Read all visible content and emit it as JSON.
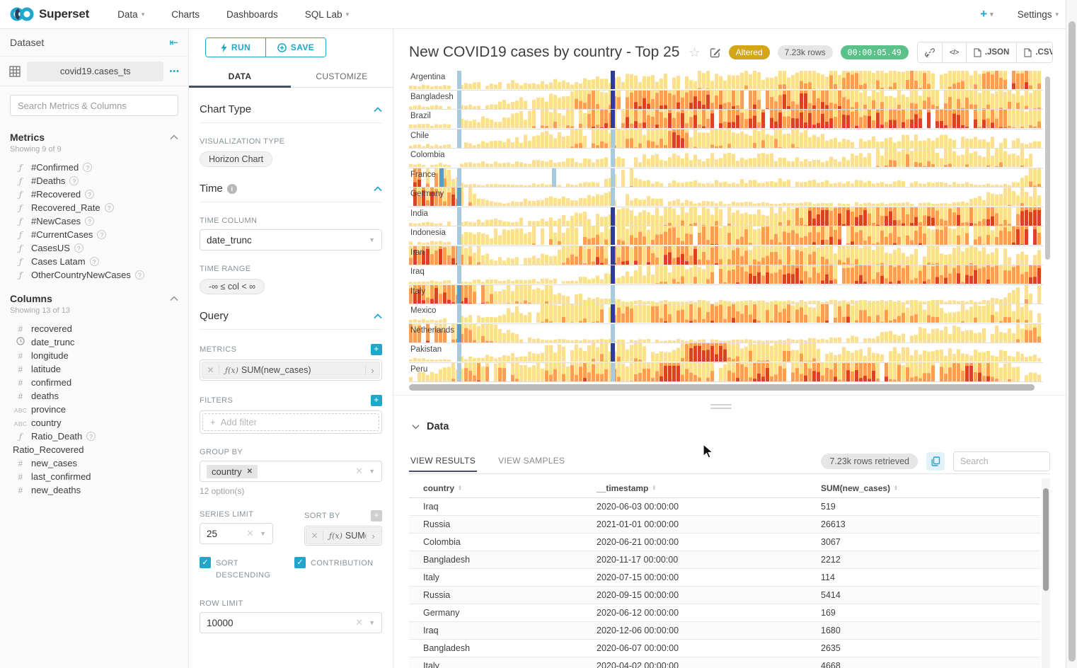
{
  "navbar": {
    "brand": "Superset",
    "items": [
      {
        "label": "Data",
        "caret": true
      },
      {
        "label": "Charts",
        "caret": false
      },
      {
        "label": "Dashboards",
        "caret": false
      },
      {
        "label": "SQL Lab",
        "caret": true
      }
    ],
    "plus_label": "+",
    "settings_label": "Settings"
  },
  "dataset_panel": {
    "title": "Dataset",
    "dataset_name": "covid19.cases_ts",
    "more_label": "•••",
    "search_placeholder": "Search Metrics & Columns",
    "metrics": {
      "title": "Metrics",
      "showing": "Showing 9 of 9",
      "items": [
        "#Confirmed",
        "#Deaths",
        "#Recovered",
        "Recovered_Rate",
        "#NewCases",
        "#CurrentCases",
        "CasesUS",
        "Cases Latam",
        "OtherCountryNewCases"
      ]
    },
    "columns": {
      "title": "Columns",
      "showing": "Showing 13 of 13",
      "items": [
        {
          "label": "recovered",
          "type": "num"
        },
        {
          "label": "date_trunc",
          "type": "time"
        },
        {
          "label": "longitude",
          "type": "num"
        },
        {
          "label": "latitude",
          "type": "num"
        },
        {
          "label": "confirmed",
          "type": "num"
        },
        {
          "label": "deaths",
          "type": "num"
        },
        {
          "label": "province",
          "type": "str"
        },
        {
          "label": "country",
          "type": "str"
        },
        {
          "label": "Ratio_Death",
          "type": "func",
          "help": true
        },
        {
          "label": "Ratio_Recovered",
          "type": "plain"
        },
        {
          "label": "new_cases",
          "type": "num"
        },
        {
          "label": "last_confirmed",
          "type": "num"
        },
        {
          "label": "new_deaths",
          "type": "num"
        }
      ]
    }
  },
  "control_panel": {
    "run_label": "RUN",
    "save_label": "SAVE",
    "tab_data": "DATA",
    "tab_customize": "CUSTOMIZE",
    "chart_type": {
      "title": "Chart Type",
      "viz_label": "VISUALIZATION TYPE",
      "viz_value": "Horizon Chart"
    },
    "time": {
      "title": "Time",
      "col_label": "TIME COLUMN",
      "col_value": "date_trunc",
      "range_label": "TIME RANGE",
      "range_value": "-∞ ≤ col < ∞"
    },
    "query": {
      "title": "Query",
      "metrics_label": "METRICS",
      "metric_fx": "ƒ(x)",
      "metric_value": "SUM(new_cases)",
      "filters_label": "FILTERS",
      "add_filter_label": "Add filter",
      "group_by_label": "GROUP BY",
      "group_tag": "country",
      "options_hint": "12 option(s)",
      "series_limit_label": "SERIES LIMIT",
      "series_limit_value": "25",
      "sort_by_label": "SORT BY",
      "sort_metric_value": "SUM(...",
      "sort_desc_label": "SORT DESCENDING",
      "contribution_label": "CONTRIBUTION",
      "row_limit_label": "ROW LIMIT",
      "row_limit_value": "10000"
    }
  },
  "chart": {
    "title": "New COVID19 cases by country - Top 25",
    "badge_altered": "Altered",
    "badge_rows": "7.23k rows",
    "badge_timer": "00:00:05.49",
    "btn_code": "</>",
    "btn_json": ".JSON",
    "btn_csv": ".CSV",
    "palette": {
      "band1": "#fcdf92",
      "band2": "#f89f57",
      "band3": "#d84328",
      "event_light": "#a7cade",
      "event_mid": "#5b9bc8",
      "event_dark": "#2e3b97"
    },
    "horizon_countries": [
      {
        "name": "Argentina",
        "seed": 11,
        "base": 0.2,
        "startLow": true,
        "peaks": [
          [
            0.5,
            0.3,
            0.5
          ],
          [
            0.78,
            0.18,
            1.0
          ],
          [
            0.97,
            0.06,
            1.4
          ]
        ],
        "events": [
          [
            0.076,
            "l"
          ],
          [
            0.318,
            "d"
          ]
        ]
      },
      {
        "name": "Bangladesh",
        "seed": 22,
        "base": 0.25,
        "startLow": true,
        "peaks": [
          [
            0.33,
            0.12,
            1.2
          ],
          [
            0.5,
            0.12,
            1.5
          ],
          [
            0.62,
            0.08,
            1.2
          ],
          [
            0.85,
            0.18,
            1.0
          ]
        ],
        "events": [
          [
            0.076,
            "l"
          ],
          [
            0.318,
            "d"
          ]
        ]
      },
      {
        "name": "Brazil",
        "seed": 33,
        "base": 0.3,
        "startLow": true,
        "peaks": [
          [
            0.38,
            0.18,
            1.5
          ],
          [
            0.62,
            0.15,
            1.7
          ],
          [
            0.85,
            0.15,
            1.6
          ]
        ],
        "events": [
          [
            0.076,
            "l"
          ],
          [
            0.318,
            "d"
          ]
        ]
      },
      {
        "name": "Chile",
        "seed": 44,
        "base": 0.18,
        "startLow": true,
        "peaks": [
          [
            0.33,
            0.14,
            1.0
          ],
          [
            0.421,
            0.012,
            2.8
          ],
          [
            0.55,
            0.08,
            0.8
          ],
          [
            0.8,
            0.2,
            0.35
          ]
        ],
        "events": [
          [
            0.076,
            "l"
          ],
          [
            0.318,
            "l"
          ]
        ]
      },
      {
        "name": "Colombia",
        "seed": 55,
        "base": 0.15,
        "startLow": true,
        "peaks": [
          [
            0.5,
            0.3,
            0.4
          ],
          [
            0.77,
            0.05,
            0.8
          ],
          [
            0.92,
            0.12,
            0.7
          ]
        ],
        "events": [
          [
            0.318,
            "l"
          ]
        ]
      },
      {
        "name": "France",
        "seed": 66,
        "base": 0.12,
        "startLow": false,
        "peaks": [
          [
            0.005,
            0.012,
            2.6
          ],
          [
            0.04,
            0.03,
            1.1
          ],
          [
            0.33,
            0.03,
            0.8
          ],
          [
            0.6,
            0.25,
            0.2
          ],
          [
            0.99,
            0.02,
            1.2
          ]
        ],
        "events": [
          [
            0.048,
            "m"
          ],
          [
            0.076,
            "l"
          ],
          [
            0.225,
            "l"
          ],
          [
            0.318,
            "l"
          ]
        ]
      },
      {
        "name": "Germany",
        "seed": 77,
        "base": 0.15,
        "startLow": false,
        "peaks": [
          [
            0.01,
            0.04,
            2.2
          ],
          [
            0.07,
            0.03,
            1.4
          ],
          [
            0.3,
            0.12,
            0.4
          ],
          [
            0.96,
            0.06,
            0.7
          ]
        ],
        "events": [
          [
            0.076,
            "m"
          ],
          [
            0.318,
            "l"
          ]
        ]
      },
      {
        "name": "India",
        "seed": 88,
        "base": 0.22,
        "startLow": true,
        "peaks": [
          [
            0.45,
            0.2,
            0.7
          ],
          [
            0.66,
            0.05,
            1.6
          ],
          [
            0.75,
            0.1,
            1.5
          ],
          [
            0.9,
            0.1,
            1.5
          ],
          [
            0.99,
            0.03,
            1.8
          ]
        ],
        "events": [
          [
            0.076,
            "l"
          ],
          [
            0.318,
            "d"
          ]
        ]
      },
      {
        "name": "Indonesia",
        "seed": 99,
        "base": 0.3,
        "startLow": true,
        "peaks": [
          [
            0.4,
            0.25,
            1.0
          ],
          [
            0.75,
            0.2,
            1.3
          ],
          [
            0.98,
            0.04,
            2.3
          ]
        ],
        "events": [
          [
            0.076,
            "l"
          ],
          [
            0.318,
            "d"
          ]
        ]
      },
      {
        "name": "Iran",
        "seed": 110,
        "base": 0.28,
        "startLow": false,
        "peaks": [
          [
            0.01,
            0.05,
            1.8
          ],
          [
            0.07,
            0.04,
            1.2
          ],
          [
            0.3,
            0.07,
            1.4
          ],
          [
            0.44,
            0.08,
            1.7
          ],
          [
            0.6,
            0.1,
            1.0
          ],
          [
            0.85,
            0.2,
            0.5
          ]
        ],
        "events": [
          [
            0.076,
            "l"
          ],
          [
            0.318,
            "d"
          ]
        ]
      },
      {
        "name": "Iraq",
        "seed": 121,
        "base": 0.18,
        "startLow": true,
        "peaks": [
          [
            0.45,
            0.12,
            0.9
          ],
          [
            0.58,
            0.08,
            1.5
          ],
          [
            0.72,
            0.12,
            1.4
          ],
          [
            0.9,
            0.1,
            1.6
          ],
          [
            0.99,
            0.03,
            1.9
          ]
        ],
        "events": [
          [
            0.076,
            "l"
          ],
          [
            0.318,
            "d"
          ]
        ]
      },
      {
        "name": "Italy",
        "seed": 132,
        "base": 0.14,
        "startLow": false,
        "peaks": [
          [
            0.01,
            0.05,
            2.0
          ],
          [
            0.09,
            0.05,
            1.4
          ],
          [
            0.2,
            0.07,
            0.7
          ],
          [
            0.98,
            0.04,
            0.8
          ]
        ],
        "events": [
          [
            0.076,
            "m"
          ],
          [
            0.318,
            "l"
          ]
        ]
      },
      {
        "name": "Mexico",
        "seed": 143,
        "base": 0.22,
        "startLow": true,
        "peaks": [
          [
            0.3,
            0.14,
            1.0
          ],
          [
            0.52,
            0.14,
            1.3
          ],
          [
            0.72,
            0.1,
            1.2
          ],
          [
            0.92,
            0.1,
            0.8
          ]
        ],
        "events": [
          [
            0.076,
            "l"
          ],
          [
            0.318,
            "d"
          ]
        ]
      },
      {
        "name": "Netherlands",
        "seed": 154,
        "base": 0.14,
        "startLow": false,
        "peaks": [
          [
            0.01,
            0.04,
            1.8
          ],
          [
            0.09,
            0.06,
            1.2
          ],
          [
            0.88,
            0.15,
            0.6
          ],
          [
            0.99,
            0.03,
            1.0
          ]
        ],
        "events": [
          [
            0.076,
            "m"
          ],
          [
            0.318,
            "l"
          ]
        ]
      },
      {
        "name": "Pakistan",
        "seed": 165,
        "base": 0.18,
        "startLow": true,
        "peaks": [
          [
            0.3,
            0.12,
            0.8
          ],
          [
            0.455,
            0.02,
            2.5
          ],
          [
            0.49,
            0.015,
            2.5
          ],
          [
            0.56,
            0.08,
            1.1
          ],
          [
            0.8,
            0.2,
            0.4
          ]
        ],
        "events": [
          [
            0.076,
            "l"
          ],
          [
            0.318,
            "d"
          ]
        ]
      },
      {
        "name": "Peru",
        "seed": 176,
        "base": 0.25,
        "startLow": false,
        "peaks": [
          [
            0.12,
            0.08,
            1.2
          ],
          [
            0.3,
            0.1,
            1.4
          ],
          [
            0.41,
            0.02,
            2.4
          ],
          [
            0.55,
            0.1,
            1.4
          ],
          [
            0.72,
            0.12,
            1.5
          ],
          [
            0.88,
            0.06,
            1.7
          ]
        ],
        "events": [
          [
            0.076,
            "l"
          ],
          [
            0.318,
            "l"
          ]
        ]
      }
    ]
  },
  "results": {
    "section_title": "Data",
    "tab_results": "VIEW RESULTS",
    "tab_samples": "VIEW SAMPLES",
    "rows_retrieved": "7.23k rows retrieved",
    "search_placeholder": "Search",
    "table": {
      "columns": [
        "country",
        "__timestamp",
        "SUM(new_cases)"
      ],
      "rows": [
        [
          "Iraq",
          "2020-06-03 00:00:00",
          "519"
        ],
        [
          "Russia",
          "2021-01-01 00:00:00",
          "26613"
        ],
        [
          "Colombia",
          "2020-06-21 00:00:00",
          "3067"
        ],
        [
          "Bangladesh",
          "2020-11-17 00:00:00",
          "2212"
        ],
        [
          "Italy",
          "2020-07-15 00:00:00",
          "114"
        ],
        [
          "Russia",
          "2020-09-15 00:00:00",
          "5414"
        ],
        [
          "Germany",
          "2020-06-12 00:00:00",
          "169"
        ],
        [
          "Iraq",
          "2020-12-06 00:00:00",
          "1680"
        ],
        [
          "Bangladesh",
          "2020-06-07 00:00:00",
          "2635"
        ],
        [
          "Italy",
          "2020-04-02 00:00:00",
          "4668"
        ]
      ]
    }
  }
}
